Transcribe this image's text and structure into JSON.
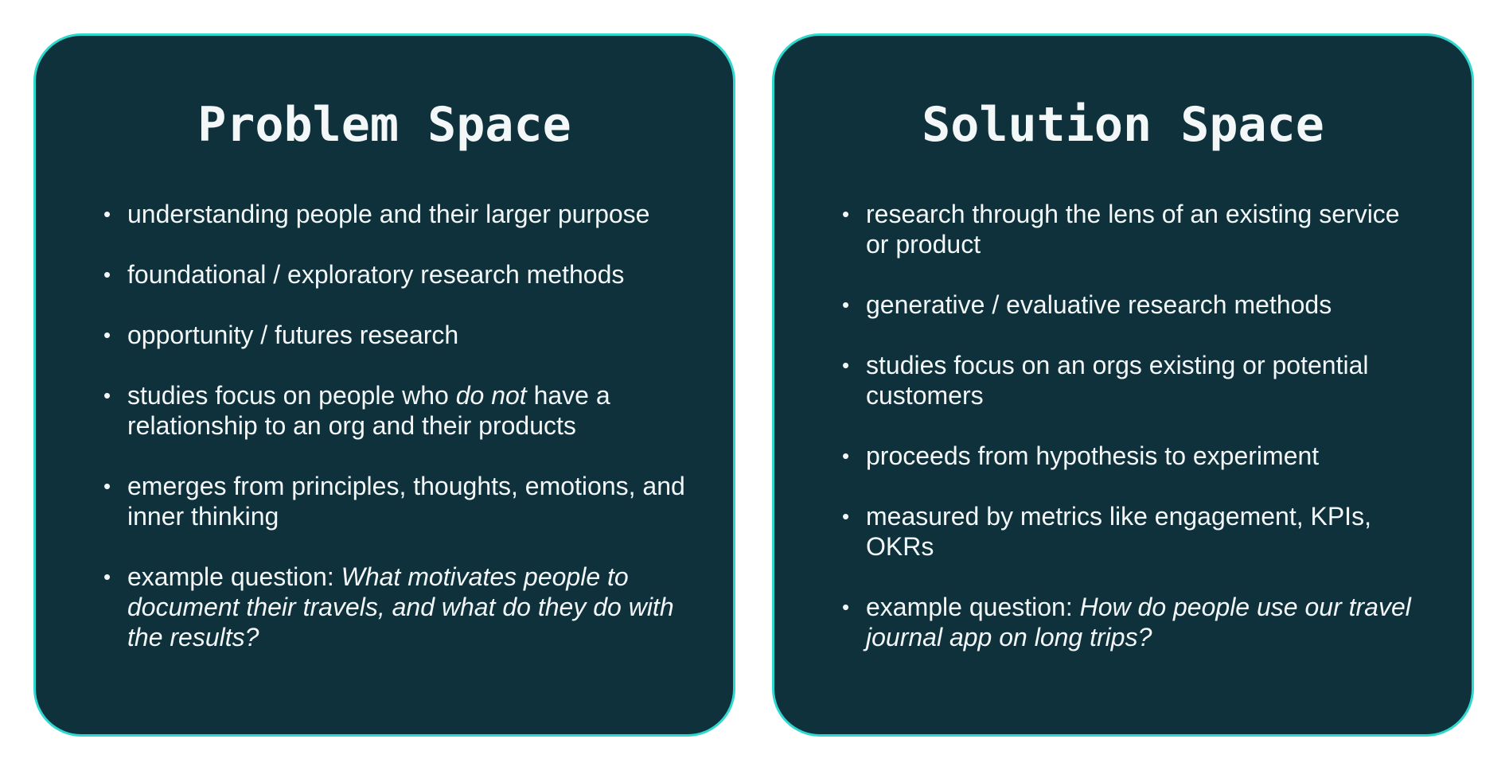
{
  "panels": [
    {
      "title": "Problem Space",
      "items": [
        {
          "parts": [
            {
              "text": "understanding people and their larger purpose",
              "italic": false
            }
          ]
        },
        {
          "parts": [
            {
              "text": "foundational / exploratory research methods",
              "italic": false
            }
          ]
        },
        {
          "parts": [
            {
              "text": "opportunity / futures research",
              "italic": false
            }
          ]
        },
        {
          "parts": [
            {
              "text": "studies focus on people who ",
              "italic": false
            },
            {
              "text": "do not",
              "italic": true
            },
            {
              "text": " have a relationship to an org and their products",
              "italic": false
            }
          ]
        },
        {
          "parts": [
            {
              "text": "emerges from principles, thoughts, emotions, and inner thinking",
              "italic": false
            }
          ]
        },
        {
          "parts": [
            {
              "text": "example question: ",
              "italic": false
            },
            {
              "text": "What motivates people to document their travels, and what do they do with the results?",
              "italic": true
            }
          ]
        }
      ]
    },
    {
      "title": "Solution Space",
      "items": [
        {
          "parts": [
            {
              "text": "research through the lens of an existing service or product",
              "italic": false
            }
          ]
        },
        {
          "parts": [
            {
              "text": "generative / evaluative research methods",
              "italic": false
            }
          ]
        },
        {
          "parts": [
            {
              "text": "studies focus on an orgs existing or potential customers",
              "italic": false
            }
          ]
        },
        {
          "parts": [
            {
              "text": "proceeds from hypothesis to experiment",
              "italic": false
            }
          ]
        },
        {
          "parts": [
            {
              "text": "measured by metrics like engagement, KPIs, OKRs",
              "italic": false
            }
          ]
        },
        {
          "parts": [
            {
              "text": "example question: ",
              "italic": false
            },
            {
              "text": "How do people use our travel journal app on long trips?",
              "italic": true
            }
          ]
        }
      ]
    }
  ],
  "colors": {
    "panel_background": "#0e313c",
    "panel_border": "#2fd8cf",
    "text": "#f3f7f8",
    "page_background": "#ffffff"
  },
  "icons": {
    "bullet": "bullet-dot-icon"
  }
}
